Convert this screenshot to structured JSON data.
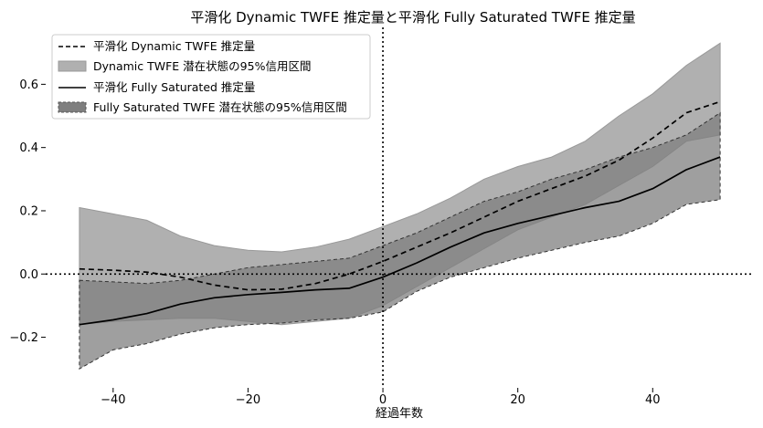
{
  "chart_data": {
    "type": "line",
    "title": "平滑化 Dynamic TWFE 推定量と平滑化 Fully Saturated TWFE 推定量",
    "xlabel": "経過年数",
    "ylabel": "",
    "xlim": [
      -50,
      55
    ],
    "ylim": [
      -0.36,
      0.78
    ],
    "x_ticks": [
      -40,
      -20,
      0,
      20,
      40
    ],
    "y_ticks": [
      -0.2,
      0.0,
      0.2,
      0.4,
      0.6
    ],
    "x_tick_labels": [
      "−40",
      "−20",
      "0",
      "20",
      "40"
    ],
    "y_tick_labels": [
      "−0.2",
      "0.0",
      "0.2",
      "0.4",
      "0.6"
    ],
    "reference_lines": {
      "x": 0,
      "y": 0
    },
    "grid": false,
    "legend_position": "top-left",
    "legend": [
      "平滑化 Dynamic TWFE 推定量",
      "Dynamic TWFE 潜在状態の95%信用区間",
      "平滑化 Fully Saturated 推定量",
      "Fully Saturated TWFE 潜在状態の95%信用区間"
    ],
    "x": [
      -45,
      -40,
      -35,
      -30,
      -25,
      -20,
      -15,
      -10,
      -5,
      0,
      5,
      10,
      15,
      20,
      25,
      30,
      35,
      40,
      45,
      50
    ],
    "series": [
      {
        "name": "平滑化 Dynamic TWFE 推定量",
        "style": "dashed",
        "color": "#000000",
        "values": [
          0.016,
          0.012,
          0.006,
          -0.01,
          -0.035,
          -0.05,
          -0.048,
          -0.03,
          0.0,
          0.04,
          0.085,
          0.13,
          0.18,
          0.23,
          0.27,
          0.31,
          0.36,
          0.43,
          0.51,
          0.545
        ]
      },
      {
        "name": "Dynamic TWFE 潜在状態の95%信用区間",
        "type": "band",
        "color": "#b0b0b0",
        "lower": [
          -0.16,
          -0.15,
          -0.145,
          -0.14,
          -0.14,
          -0.15,
          -0.16,
          -0.15,
          -0.14,
          -0.1,
          -0.04,
          0.02,
          0.08,
          0.14,
          0.18,
          0.22,
          0.28,
          0.34,
          0.42,
          0.44
        ],
        "upper": [
          0.21,
          0.19,
          0.17,
          0.12,
          0.09,
          0.075,
          0.07,
          0.085,
          0.11,
          0.15,
          0.19,
          0.24,
          0.3,
          0.34,
          0.37,
          0.42,
          0.5,
          0.57,
          0.66,
          0.73
        ]
      },
      {
        "name": "平滑化 Fully Saturated 推定量",
        "style": "solid",
        "color": "#000000",
        "values": [
          -0.16,
          -0.145,
          -0.125,
          -0.095,
          -0.075,
          -0.065,
          -0.058,
          -0.05,
          -0.045,
          -0.01,
          0.035,
          0.085,
          0.13,
          0.16,
          0.185,
          0.21,
          0.23,
          0.27,
          0.33,
          0.37
        ]
      },
      {
        "name": "Fully Saturated TWFE 潜在状態の95%信用区間",
        "type": "band",
        "color": "#7f7f7f",
        "lower": [
          -0.3,
          -0.24,
          -0.22,
          -0.19,
          -0.17,
          -0.16,
          -0.155,
          -0.145,
          -0.14,
          -0.12,
          -0.055,
          -0.01,
          0.02,
          0.05,
          0.075,
          0.1,
          0.12,
          0.16,
          0.22,
          0.235
        ],
        "upper": [
          -0.02,
          -0.025,
          -0.03,
          -0.02,
          0.0,
          0.02,
          0.03,
          0.04,
          0.05,
          0.09,
          0.13,
          0.18,
          0.23,
          0.26,
          0.3,
          0.33,
          0.37,
          0.4,
          0.44,
          0.51
        ]
      }
    ]
  }
}
